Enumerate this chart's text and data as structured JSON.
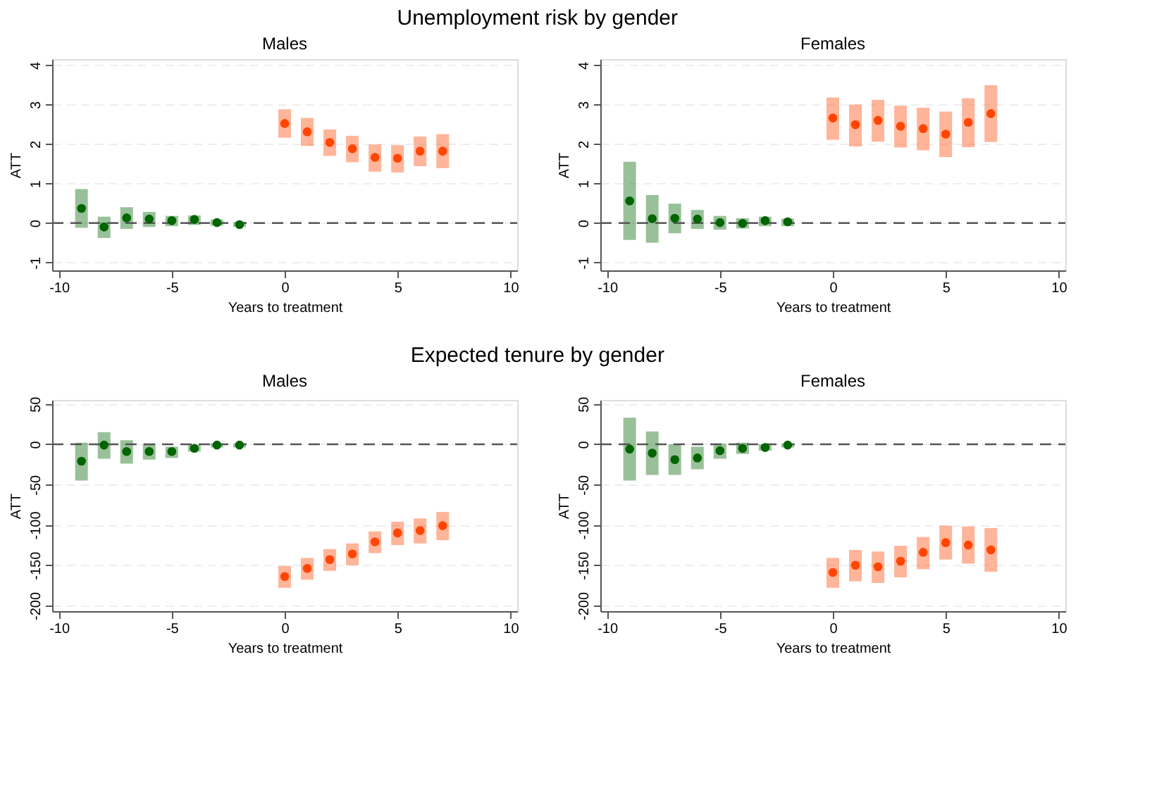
{
  "chart_data": [
    {
      "type": "scatter",
      "title": "Males",
      "annotations": [
        "Unemployment risk by gender"
      ],
      "xlabel": "Years to treatment",
      "ylabel": "ATT",
      "xlim": [
        -10.3,
        10.3
      ],
      "xticks": [
        -10,
        -5,
        0,
        5,
        10
      ],
      "ylim": [
        -1.2,
        4.15
      ],
      "yticks": [
        -1,
        0,
        1,
        2,
        3,
        4
      ],
      "grid": "y",
      "marker": "circle",
      "ref_lines": [
        {
          "axis": "y",
          "value": 0,
          "line_style": "dashed",
          "color": "#555555"
        }
      ],
      "series": [
        {
          "color": "#006400",
          "x": [
            -9,
            -8,
            -7,
            -6,
            -5,
            -4,
            -3,
            -2
          ],
          "values": [
            0.37,
            -0.1,
            0.13,
            0.1,
            0.06,
            0.09,
            0.01,
            -0.04
          ],
          "errors": [
            [
              -0.12,
              0.86
            ],
            [
              -0.38,
              0.16
            ],
            [
              -0.15,
              0.4
            ],
            [
              -0.1,
              0.28
            ],
            [
              -0.08,
              0.18
            ],
            [
              -0.05,
              0.19
            ],
            [
              -0.07,
              0.09
            ],
            [
              -0.1,
              0.03
            ]
          ]
        },
        {
          "color": "#ff4500",
          "x": [
            0,
            1,
            2,
            3,
            4,
            5,
            6,
            7
          ],
          "values": [
            2.52,
            2.31,
            2.04,
            1.88,
            1.66,
            1.64,
            1.82,
            1.82
          ],
          "errors": [
            [
              2.16,
              2.88
            ],
            [
              1.95,
              2.66
            ],
            [
              1.7,
              2.37
            ],
            [
              1.54,
              2.21
            ],
            [
              1.3,
              1.99
            ],
            [
              1.28,
              1.97
            ],
            [
              1.44,
              2.19
            ],
            [
              1.39,
              2.25
            ]
          ]
        }
      ]
    },
    {
      "type": "scatter",
      "title": "Females",
      "xlabel": "Years to treatment",
      "ylabel": "ATT",
      "xlim": [
        -10.3,
        10.3
      ],
      "xticks": [
        -10,
        -5,
        0,
        5,
        10
      ],
      "ylim": [
        -1.2,
        4.15
      ],
      "yticks": [
        -1,
        0,
        1,
        2,
        3,
        4
      ],
      "grid": "y",
      "marker": "circle",
      "ref_lines": [
        {
          "axis": "y",
          "value": 0,
          "line_style": "dashed",
          "color": "#555555"
        }
      ],
      "series": [
        {
          "color": "#006400",
          "x": [
            -9,
            -8,
            -7,
            -6,
            -5,
            -4,
            -3,
            -2
          ],
          "values": [
            0.56,
            0.11,
            0.12,
            0.1,
            0.01,
            -0.01,
            0.06,
            0.03
          ],
          "errors": [
            [
              -0.43,
              1.55
            ],
            [
              -0.5,
              0.71
            ],
            [
              -0.26,
              0.49
            ],
            [
              -0.15,
              0.33
            ],
            [
              -0.17,
              0.18
            ],
            [
              -0.14,
              0.12
            ],
            [
              -0.08,
              0.16
            ],
            [
              -0.08,
              0.11
            ]
          ]
        },
        {
          "color": "#ff4500",
          "x": [
            0,
            1,
            2,
            3,
            4,
            5,
            6,
            7
          ],
          "values": [
            2.66,
            2.49,
            2.6,
            2.45,
            2.39,
            2.25,
            2.55,
            2.77
          ],
          "errors": [
            [
              2.11,
              3.18
            ],
            [
              1.94,
              3.0
            ],
            [
              2.06,
              3.12
            ],
            [
              1.91,
              2.97
            ],
            [
              1.84,
              2.92
            ],
            [
              1.67,
              2.82
            ],
            [
              1.92,
              3.16
            ],
            [
              2.05,
              3.49
            ]
          ]
        }
      ]
    },
    {
      "type": "scatter",
      "title": "Males",
      "annotations": [
        "Expected tenure by gender"
      ],
      "xlabel": "Years to treatment",
      "ylabel": "ATT",
      "xlim": [
        -10.3,
        10.3
      ],
      "xticks": [
        -10,
        -5,
        0,
        5,
        10
      ],
      "ylim": [
        -207,
        55
      ],
      "yticks": [
        -200,
        -150,
        -100,
        -50,
        0,
        50
      ],
      "grid": "y",
      "marker": "circle",
      "ref_lines": [
        {
          "axis": "y",
          "value": 0,
          "line_style": "dashed",
          "color": "#555555"
        }
      ],
      "series": [
        {
          "color": "#006400",
          "x": [
            -9,
            -8,
            -7,
            -6,
            -5,
            -4,
            -3,
            -2
          ],
          "values": [
            -21,
            -1,
            -9,
            -9,
            -9,
            -5,
            -1,
            -1
          ],
          "errors": [
            [
              -45,
              2
            ],
            [
              -18,
              15
            ],
            [
              -24,
              5
            ],
            [
              -19,
              0
            ],
            [
              -17,
              -3
            ],
            [
              -9,
              -1
            ],
            [
              -4,
              1
            ],
            [
              -4,
              1
            ]
          ]
        },
        {
          "color": "#ff4500",
          "x": [
            0,
            1,
            2,
            3,
            4,
            5,
            6,
            7
          ],
          "values": [
            -164,
            -154,
            -143,
            -136,
            -121,
            -110,
            -107,
            -101
          ],
          "errors": [
            [
              -178,
              -151
            ],
            [
              -168,
              -141
            ],
            [
              -157,
              -130
            ],
            [
              -150,
              -123
            ],
            [
              -135,
              -108
            ],
            [
              -125,
              -96
            ],
            [
              -123,
              -92
            ],
            [
              -119,
              -84
            ]
          ]
        }
      ]
    },
    {
      "type": "scatter",
      "title": "Females",
      "xlabel": "Years to treatment",
      "ylabel": "ATT",
      "xlim": [
        -10.3,
        10.3
      ],
      "xticks": [
        -10,
        -5,
        0,
        5,
        10
      ],
      "ylim": [
        -207,
        55
      ],
      "yticks": [
        -200,
        -150,
        -100,
        -50,
        0,
        50
      ],
      "grid": "y",
      "marker": "circle",
      "ref_lines": [
        {
          "axis": "y",
          "value": 0,
          "line_style": "dashed",
          "color": "#555555"
        }
      ],
      "series": [
        {
          "color": "#006400",
          "x": [
            -9,
            -8,
            -7,
            -6,
            -5,
            -4,
            -3,
            -2
          ],
          "values": [
            -6,
            -11,
            -19,
            -17,
            -8,
            -5,
            -4,
            -1
          ],
          "errors": [
            [
              -45,
              33
            ],
            [
              -38,
              16
            ],
            [
              -38,
              0
            ],
            [
              -31,
              -3
            ],
            [
              -18,
              1
            ],
            [
              -12,
              2
            ],
            [
              -8,
              0
            ],
            [
              -4,
              1
            ]
          ]
        },
        {
          "color": "#ff4500",
          "x": [
            0,
            1,
            2,
            3,
            4,
            5,
            6,
            7
          ],
          "values": [
            -159,
            -150,
            -152,
            -145,
            -134,
            -122,
            -125,
            -131
          ],
          "errors": [
            [
              -178,
              -141
            ],
            [
              -170,
              -131
            ],
            [
              -172,
              -133
            ],
            [
              -165,
              -126
            ],
            [
              -155,
              -115
            ],
            [
              -143,
              -101
            ],
            [
              -148,
              -102
            ],
            [
              -158,
              -104
            ]
          ]
        }
      ]
    }
  ]
}
